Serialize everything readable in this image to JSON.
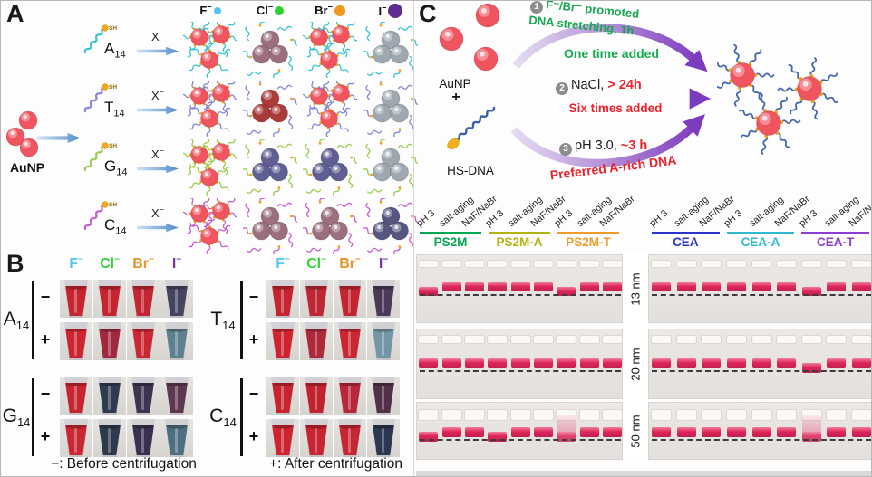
{
  "panel_a": {
    "label": "A",
    "aunp_label": "AuNP",
    "sh_label": "SH",
    "x_label": {
      "base": "X",
      "charge": "−"
    },
    "ions": [
      {
        "sym": "F",
        "charge": "−",
        "dot_color": "#52c6f0",
        "dot": 8
      },
      {
        "sym": "Cl",
        "charge": "−",
        "dot_color": "#2ed12e",
        "dot": 10
      },
      {
        "sym": "Br",
        "charge": "−",
        "dot_color": "#f0981e",
        "dot": 12
      },
      {
        "sym": "I",
        "charge": "−",
        "dot_color": "#5e2b90",
        "dot": 16
      }
    ],
    "rows": [
      {
        "base": "A",
        "sub": "14",
        "strand_color": "#3cc3d6",
        "cells": [
          "dispersed",
          "agg_mauve",
          "dispersed",
          "agg_gray"
        ]
      },
      {
        "base": "T",
        "sub": "14",
        "strand_color": "#8486d8",
        "cells": [
          "dispersed",
          "agg_darkred",
          "dispersed",
          "agg_gray"
        ]
      },
      {
        "base": "G",
        "sub": "14",
        "strand_color": "#9ccc50",
        "cells": [
          "dispersed",
          "agg_slate",
          "agg_slate",
          "agg_gray"
        ]
      },
      {
        "base": "C",
        "sub": "14",
        "strand_color": "#c45fd0",
        "cells": [
          "dispersed",
          "agg_mauve",
          "agg_mauve",
          "agg_navy"
        ]
      }
    ],
    "np_colors": {
      "dispersed": "#f0545e",
      "agg_mauve": "#9b6f7f",
      "agg_darkred": "#ab3a3a",
      "agg_slate": "#5f5f93",
      "agg_gray": "#9fa8b0",
      "agg_navy": "#565681"
    }
  },
  "panel_b": {
    "label": "B",
    "minus_caption": "−: Before centrifugation",
    "plus_caption": "+: After centrifugation",
    "row_signs": [
      "−",
      "+"
    ],
    "ions": [
      {
        "sym": "F",
        "charge": "−",
        "color": "#55c8f2"
      },
      {
        "sym": "Cl",
        "charge": "−",
        "color": "#35d435"
      },
      {
        "sym": "Br",
        "charge": "−",
        "color": "#e8922a"
      },
      {
        "sym": "I",
        "charge": "−",
        "color": "#7a35a8"
      }
    ],
    "groups": [
      {
        "base": "A",
        "sub": "14",
        "minus": [
          "#c6242e",
          "#c6242e",
          "#c32531",
          "#45445f"
        ],
        "plus": [
          "#cd2430",
          "#a1293f",
          "#ca2732",
          "#5e7f8e"
        ]
      },
      {
        "base": "G",
        "sub": "14",
        "minus": [
          "#c6242e",
          "#303a50",
          "#3c3450",
          "#5e3850"
        ],
        "plus": [
          "#ca2732",
          "#2f394e",
          "#393150",
          "#4e6f80"
        ]
      },
      {
        "base": "T",
        "sub": "14",
        "minus": [
          "#c6242e",
          "#bd2834",
          "#c32531",
          "#4b3a57"
        ],
        "plus": [
          "#cd2430",
          "#ae2a3b",
          "#ca2732",
          "#7396a5"
        ]
      },
      {
        "base": "C",
        "sub": "14",
        "minus": [
          "#c6242e",
          "#c2242f",
          "#b9283a",
          "#513048"
        ],
        "plus": [
          "#cd2430",
          "#c62531",
          "#c62531",
          "#2c3852"
        ]
      }
    ]
  },
  "panel_c": {
    "label": "C",
    "reactants": {
      "aunp": "AuNP",
      "plus": "+",
      "hsdna": "HS-DNA"
    },
    "arrow_colors": {
      "light": "#e4dcf2",
      "mid": "#b28ad6",
      "dark": "#8040c0",
      "head": "#7b3cc0"
    },
    "steps": [
      {
        "num": "1",
        "lines": [
          "F⁻/Br⁻ promoted",
          "DNA stretching, 1h"
        ],
        "color": "#17a94f",
        "note": "One time added",
        "note_color": "#17a94f"
      },
      {
        "num": "2",
        "black": "NaCl, ",
        "red": "> 24h",
        "red_color": "#e8232d",
        "note": "Six times added",
        "note_color": "#e8232d"
      },
      {
        "num": "3",
        "black": "pH 3.0, ",
        "red": "~3 h",
        "red_color": "#e8232d",
        "note": "Preferred A-rich DNA",
        "note_color": "#e8232d"
      }
    ],
    "gel": {
      "lane_labels": [
        "pH 3",
        "salt-aging",
        "NaF/NaBr"
      ],
      "left_groups": [
        {
          "name": "PS2M",
          "color": "#00a651"
        },
        {
          "name": "PS2M-A",
          "color": "#b3b312"
        },
        {
          "name": "PS2M-T",
          "color": "#f09c28"
        }
      ],
      "right_groups": [
        {
          "name": "CEA",
          "color": "#2a35c8"
        },
        {
          "name": "CEA-A",
          "color": "#2fb9cc"
        },
        {
          "name": "CEA-T",
          "color": "#8a3fd0"
        }
      ],
      "size_labels": [
        "13 nm",
        "20 nm",
        "50 nm"
      ],
      "band_color": "#dd2558",
      "rows": [
        {
          "left_low": [
            0,
            6
          ],
          "right_low": [
            6
          ],
          "left_smear": [],
          "right_smear": []
        },
        {
          "left_low": [],
          "right_low": [
            6
          ],
          "left_smear": [],
          "right_smear": []
        },
        {
          "left_low": [
            0,
            3,
            6
          ],
          "right_low": [
            6
          ],
          "left_smear": [
            6
          ],
          "right_smear": [
            6
          ]
        }
      ]
    }
  }
}
